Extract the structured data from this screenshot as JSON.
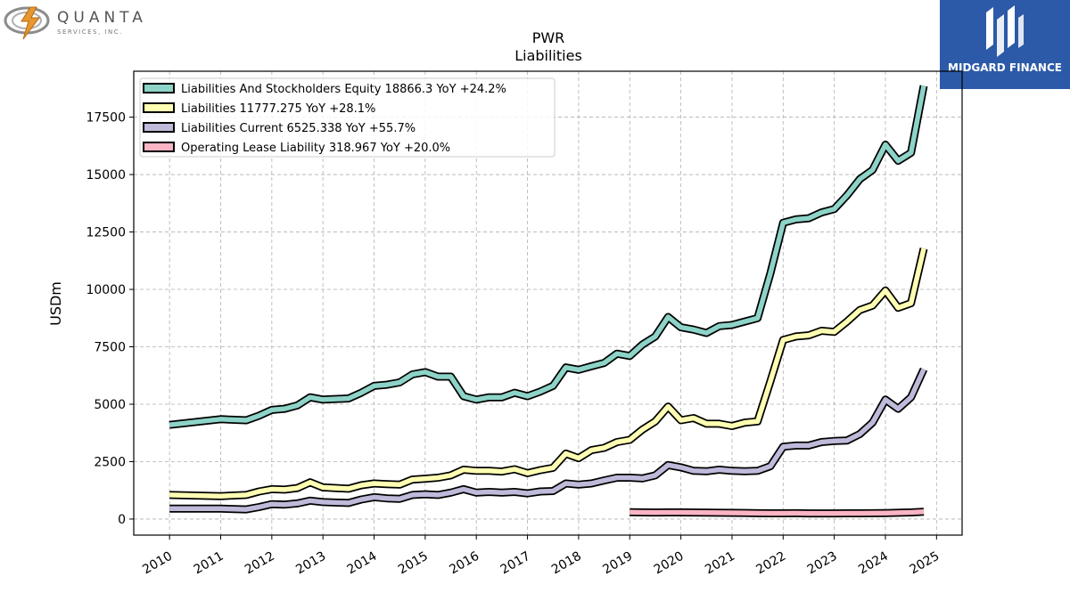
{
  "branding": {
    "left_logo_name": "QUANTA",
    "left_logo_sub": "SERVICES, INC.",
    "right_logo_name": "MIDGARD FINANCE"
  },
  "colors": {
    "brand_right_bg": "#2c5aa8",
    "series_equity": "#8dd3c7",
    "series_liabilities": "#ffffb3",
    "series_current": "#bebada",
    "series_lease": "#fbb4c4"
  },
  "chart_data": {
    "type": "line",
    "title": "PWR",
    "subtitle": "Liabilities",
    "ylabel": "USDm",
    "xlabel": "",
    "xlim": [
      2009.3,
      2025.5
    ],
    "ylim": [
      -700,
      19500
    ],
    "x_ticks": [
      "2010",
      "2011",
      "2012",
      "2013",
      "2014",
      "2015",
      "2016",
      "2017",
      "2018",
      "2019",
      "2020",
      "2021",
      "2022",
      "2023",
      "2024",
      "2025"
    ],
    "y_ticks": [
      "0",
      "2500",
      "5000",
      "7500",
      "10000",
      "12500",
      "15000",
      "17500"
    ],
    "grid": true,
    "legend_position": "top-left",
    "series": [
      {
        "name": "Liabilities And Stockholders Equity",
        "legend_label": "Liabilities And Stockholders Equity  18866.3 YoY +24.2%",
        "color": "#8dd3c7",
        "x": [
          2010.0,
          2011.0,
          2011.5,
          2011.75,
          2012.0,
          2012.25,
          2012.5,
          2012.75,
          2013.0,
          2013.5,
          2013.75,
          2014.0,
          2014.25,
          2014.5,
          2014.75,
          2015.0,
          2015.25,
          2015.5,
          2015.75,
          2016.0,
          2016.25,
          2016.5,
          2016.75,
          2017.0,
          2017.25,
          2017.5,
          2017.75,
          2018.0,
          2018.25,
          2018.5,
          2018.75,
          2019.0,
          2019.25,
          2019.5,
          2019.75,
          2020.0,
          2020.25,
          2020.5,
          2020.75,
          2021.0,
          2021.25,
          2021.5,
          2021.75,
          2022.0,
          2022.25,
          2022.5,
          2022.75,
          2023.0,
          2023.25,
          2023.5,
          2023.75,
          2024.0,
          2024.25,
          2024.5,
          2024.75
        ],
        "values": [
          4100,
          4350,
          4300,
          4500,
          4750,
          4800,
          4950,
          5300,
          5200,
          5250,
          5500,
          5800,
          5850,
          5950,
          6300,
          6400,
          6200,
          6200,
          5350,
          5200,
          5300,
          5300,
          5500,
          5350,
          5550,
          5800,
          6600,
          6500,
          6650,
          6800,
          7200,
          7100,
          7600,
          7950,
          8800,
          8350,
          8250,
          8100,
          8400,
          8450,
          8600,
          8750,
          10700,
          12900,
          13050,
          13100,
          13350,
          13500,
          14100,
          14800,
          15200,
          16300,
          15600,
          15950,
          18866
        ]
      },
      {
        "name": "Liabilities",
        "legend_label": "Liabilities  11777.275 YoY +28.1%",
        "color": "#ffffb3",
        "x": [
          2010.0,
          2011.0,
          2011.5,
          2011.75,
          2012.0,
          2012.25,
          2012.5,
          2012.75,
          2013.0,
          2013.5,
          2013.75,
          2014.0,
          2014.25,
          2014.5,
          2014.75,
          2015.0,
          2015.25,
          2015.5,
          2015.75,
          2016.0,
          2016.25,
          2016.5,
          2016.75,
          2017.0,
          2017.25,
          2017.5,
          2017.75,
          2018.0,
          2018.25,
          2018.5,
          2018.75,
          2019.0,
          2019.25,
          2019.5,
          2019.75,
          2020.0,
          2020.25,
          2020.5,
          2020.75,
          2021.0,
          2021.25,
          2021.5,
          2021.75,
          2022.0,
          2022.25,
          2022.5,
          2022.75,
          2023.0,
          2023.25,
          2023.5,
          2023.75,
          2024.0,
          2024.25,
          2024.5,
          2024.75
        ],
        "values": [
          1050,
          1000,
          1050,
          1200,
          1300,
          1280,
          1350,
          1600,
          1380,
          1320,
          1470,
          1550,
          1520,
          1500,
          1720,
          1760,
          1800,
          1900,
          2150,
          2100,
          2100,
          2070,
          2170,
          2000,
          2130,
          2230,
          2850,
          2650,
          3000,
          3100,
          3350,
          3450,
          3900,
          4250,
          4900,
          4300,
          4400,
          4150,
          4150,
          4050,
          4200,
          4250,
          6000,
          7800,
          7950,
          8000,
          8200,
          8150,
          8600,
          9100,
          9300,
          9950,
          9200,
          9400,
          11777
        ]
      },
      {
        "name": "Liabilities Current",
        "legend_label": "Liabilities Current  6525.338 YoY +55.7%",
        "color": "#bebada",
        "x": [
          2010.0,
          2011.0,
          2011.5,
          2011.75,
          2012.0,
          2012.25,
          2012.5,
          2012.75,
          2013.0,
          2013.5,
          2013.75,
          2014.0,
          2014.25,
          2014.5,
          2014.75,
          2015.0,
          2015.25,
          2015.5,
          2015.75,
          2016.0,
          2016.25,
          2016.5,
          2016.75,
          2017.0,
          2017.25,
          2017.5,
          2017.75,
          2018.0,
          2018.25,
          2018.5,
          2018.75,
          2019.0,
          2019.25,
          2019.5,
          2019.75,
          2020.0,
          2020.25,
          2020.5,
          2020.75,
          2021.0,
          2021.25,
          2021.5,
          2021.75,
          2022.0,
          2022.25,
          2022.5,
          2022.75,
          2023.0,
          2023.25,
          2023.5,
          2023.75,
          2024.0,
          2024.25,
          2024.5,
          2024.75
        ],
        "values": [
          450,
          450,
          420,
          520,
          650,
          630,
          680,
          800,
          740,
          700,
          850,
          950,
          900,
          880,
          1050,
          1080,
          1050,
          1150,
          1300,
          1150,
          1180,
          1150,
          1180,
          1120,
          1200,
          1220,
          1550,
          1500,
          1550,
          1680,
          1800,
          1800,
          1770,
          1900,
          2350,
          2250,
          2100,
          2080,
          2150,
          2100,
          2080,
          2100,
          2300,
          3150,
          3200,
          3200,
          3350,
          3400,
          3420,
          3700,
          4200,
          5200,
          4800,
          5300,
          6525
        ]
      },
      {
        "name": "Operating Lease Liability",
        "legend_label": "Operating Lease Liability  318.967 YoY +20.0%",
        "color": "#fbb4c4",
        "x": [
          2019.0,
          2019.25,
          2019.5,
          2019.75,
          2020.0,
          2020.25,
          2020.5,
          2020.75,
          2021.0,
          2021.25,
          2021.5,
          2021.75,
          2022.0,
          2022.25,
          2022.5,
          2022.75,
          2023.0,
          2023.25,
          2023.5,
          2023.75,
          2024.0,
          2024.25,
          2024.5,
          2024.75
        ],
        "values": [
          300,
          290,
          285,
          290,
          290,
          285,
          280,
          275,
          270,
          265,
          255,
          250,
          250,
          255,
          245,
          245,
          245,
          250,
          250,
          255,
          260,
          275,
          290,
          319
        ]
      }
    ]
  }
}
